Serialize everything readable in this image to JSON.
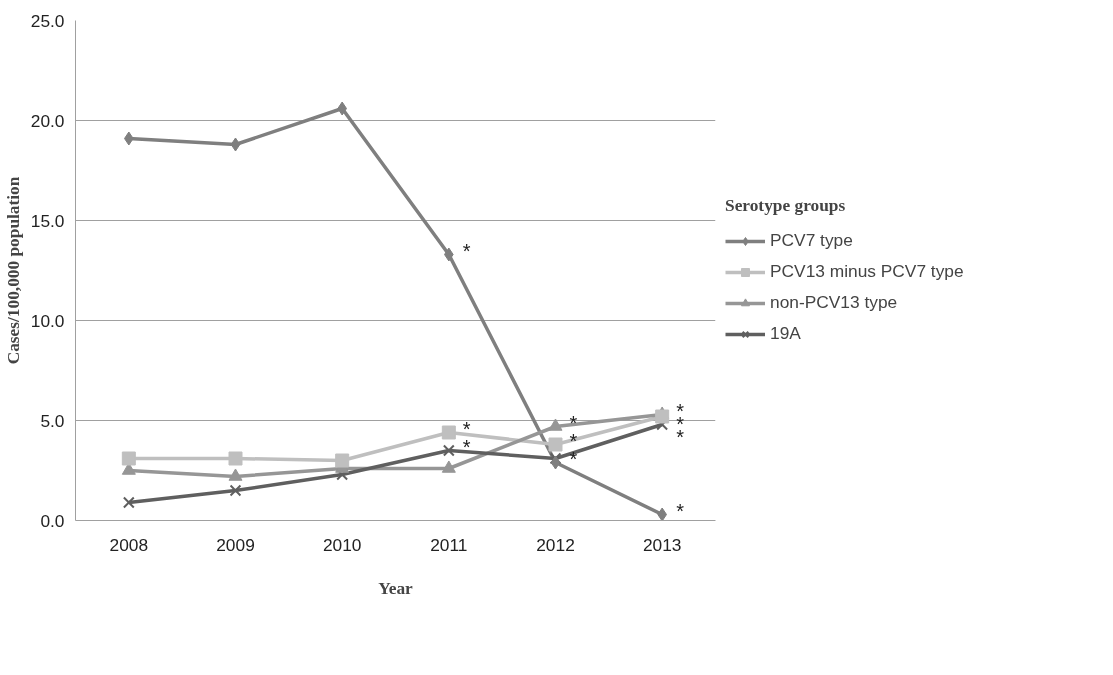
{
  "chart_data": {
    "type": "line",
    "xlabel": "Year",
    "ylabel": "Cases/100,000 population",
    "legend_title": "Serotype groups",
    "categories": [
      "2008",
      "2009",
      "2010",
      "2011",
      "2012",
      "2013"
    ],
    "series": [
      {
        "name": "PCV7 type",
        "color": "#7f7f7f",
        "marker": "diamond",
        "values": [
          19.1,
          18.8,
          20.6,
          13.3,
          2.9,
          0.3
        ]
      },
      {
        "name": "PCV13 minus PCV7 type",
        "color": "#bfbfbf",
        "marker": "square",
        "values": [
          3.1,
          3.1,
          3.0,
          4.4,
          3.8,
          5.2
        ]
      },
      {
        "name": "non-PCV13 type",
        "color": "#969696",
        "marker": "triangle",
        "values": [
          2.5,
          2.2,
          2.6,
          2.6,
          4.7,
          5.3
        ]
      },
      {
        "name": "19A",
        "color": "#5f5f5f",
        "marker": "cross",
        "values": [
          0.9,
          1.5,
          2.3,
          3.5,
          3.1,
          4.8
        ]
      }
    ],
    "ylim": [
      0,
      25
    ],
    "yticks": [
      {
        "value": 0,
        "label": "0.0"
      },
      {
        "value": 5,
        "label": "5.0"
      },
      {
        "value": 10,
        "label": "10.0"
      },
      {
        "value": 15,
        "label": "15.0"
      },
      {
        "value": 20,
        "label": "20.0"
      },
      {
        "value": 25,
        "label": "25.0"
      }
    ],
    "grid": "y",
    "legend": "right",
    "line_style": "solid",
    "annotations": [
      {
        "text": "*",
        "x": "2011",
        "y": 13.3
      },
      {
        "text": "*",
        "x": "2011",
        "y": 4.4
      },
      {
        "text": "*",
        "x": "2011",
        "y": 3.5
      },
      {
        "text": "*",
        "x": "2012",
        "y": 4.7
      },
      {
        "text": "*",
        "x": "2012",
        "y": 3.8
      },
      {
        "text": "*",
        "x": "2012",
        "y": 2.9
      },
      {
        "text": "*",
        "x": "2013",
        "y": 5.3
      },
      {
        "text": "*",
        "x": "2013",
        "y": 5.2
      },
      {
        "text": "*",
        "x": "2013",
        "y": 4.8
      },
      {
        "text": "*",
        "x": "2013",
        "y": 0.3
      }
    ]
  }
}
